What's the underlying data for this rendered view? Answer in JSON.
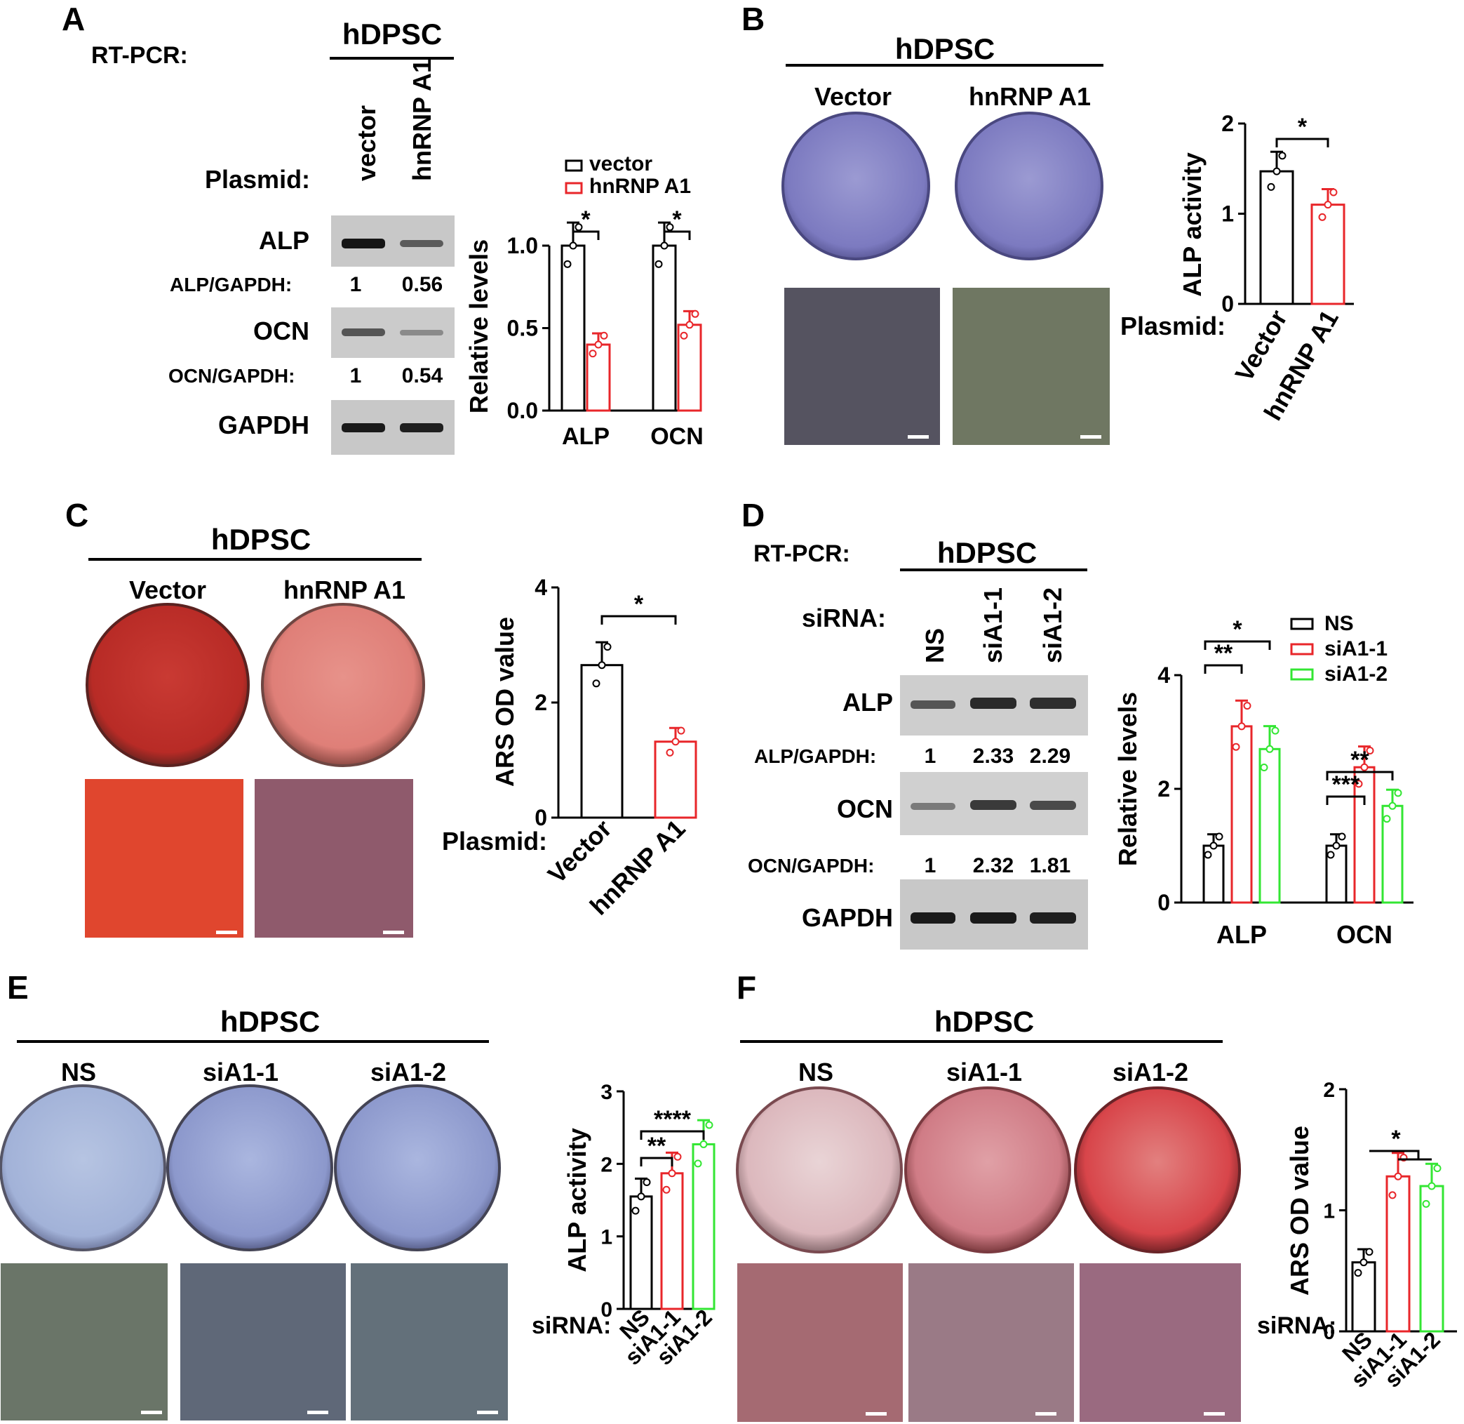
{
  "panels": {
    "A": {
      "letter": "A",
      "method": "RT-PCR:",
      "cell": "hDPSC",
      "plasmid_label": "Plasmid:",
      "lanes": [
        "vector",
        "hnRNP A1"
      ],
      "bands": [
        {
          "name": "ALP",
          "ratio_label": "ALP/GAPDH:",
          "ratios": [
            "1",
            "0.56"
          ]
        },
        {
          "name": "OCN",
          "ratio_label": "OCN/GAPDH:",
          "ratios": [
            "1",
            "0.54"
          ]
        },
        {
          "name": "GAPDH"
        }
      ]
    },
    "B": {
      "letter": "B",
      "cell": "hDPSC",
      "groups": [
        "Vector",
        "hnRNP A1"
      ],
      "plasmid_label": "Plasmid:"
    },
    "C": {
      "letter": "C",
      "cell": "hDPSC",
      "groups": [
        "Vector",
        "hnRNP A1"
      ],
      "plasmid_label": "Plasmid:"
    },
    "D": {
      "letter": "D",
      "method": "RT-PCR:",
      "cell": "hDPSC",
      "sirna_label": "siRNA:",
      "lanes": [
        "NS",
        "siA1-1",
        "siA1-2"
      ],
      "bands": [
        {
          "name": "ALP",
          "ratio_label": "ALP/GAPDH:",
          "ratios": [
            "1",
            "2.33",
            "2.29"
          ]
        },
        {
          "name": "OCN",
          "ratio_label": "OCN/GAPDH:",
          "ratios": [
            "1",
            "2.32",
            "1.81"
          ]
        },
        {
          "name": "GAPDH"
        }
      ]
    },
    "E": {
      "letter": "E",
      "cell": "hDPSC",
      "groups": [
        "NS",
        "siA1-1",
        "siA1-2"
      ],
      "sirna_label": "siRNA:"
    },
    "F": {
      "letter": "F",
      "cell": "hDPSC",
      "groups": [
        "NS",
        "siA1-1",
        "siA1-2"
      ],
      "sirna_label": "siRNA:"
    }
  },
  "colors": {
    "black": "#000000",
    "red": "#e8262a",
    "green": "#33e633",
    "alp_blue": "#8a88c8",
    "ars_red": "#c0302c"
  },
  "chart_data": [
    {
      "id": "A",
      "type": "bar",
      "ylabel": "Relative levels",
      "categories": [
        "ALP",
        "OCN"
      ],
      "ylim": [
        0,
        1.0
      ],
      "yticks": [
        "0.0",
        "0.5",
        "1.0"
      ],
      "series": [
        {
          "name": "vector",
          "values": [
            1.0,
            1.0
          ]
        },
        {
          "name": "hnRNP  A1",
          "values": [
            0.4,
            0.52
          ]
        }
      ],
      "significance": [
        "*",
        "*"
      ]
    },
    {
      "id": "B",
      "type": "bar",
      "ylabel": "ALP activity",
      "categories": [
        "Vector",
        "hnRNP A1"
      ],
      "values": [
        1.47,
        1.1
      ],
      "ylim": [
        0,
        2
      ],
      "yticks": [
        "0",
        "1",
        "2"
      ],
      "significance": [
        "*"
      ]
    },
    {
      "id": "C",
      "type": "bar",
      "ylabel": "ARS OD value",
      "categories": [
        "Vector",
        "hnRNP A1"
      ],
      "values": [
        2.65,
        1.32
      ],
      "ylim": [
        0,
        4
      ],
      "yticks": [
        "0",
        "2",
        "4"
      ],
      "significance": [
        "*"
      ]
    },
    {
      "id": "D",
      "type": "bar",
      "ylabel": "Relative levels",
      "categories": [
        "ALP",
        "OCN"
      ],
      "ylim": [
        0,
        4
      ],
      "yticks": [
        "0",
        "2",
        "4"
      ],
      "series": [
        {
          "name": "NS",
          "values": [
            1.0,
            1.0
          ]
        },
        {
          "name": "siA1-1",
          "values": [
            3.1,
            2.38
          ]
        },
        {
          "name": "siA1-2",
          "values": [
            2.7,
            1.7
          ]
        }
      ],
      "significance": [
        "**",
        "*",
        "***",
        "**"
      ]
    },
    {
      "id": "E",
      "type": "bar",
      "ylabel": "ALP activity",
      "categories": [
        "NS",
        "siA1-1",
        "siA1-2"
      ],
      "values": [
        1.55,
        1.87,
        2.27
      ],
      "ylim": [
        0,
        3
      ],
      "yticks": [
        "0",
        "1",
        "2",
        "3"
      ],
      "significance": [
        "**",
        "****"
      ]
    },
    {
      "id": "F",
      "type": "bar",
      "ylabel": "ARS OD value",
      "categories": [
        "NS",
        "siA1-1",
        "siA1-2"
      ],
      "values": [
        0.57,
        1.28,
        1.2
      ],
      "ylim": [
        0,
        2
      ],
      "yticks": [
        "0",
        "1",
        "2"
      ],
      "significance": [
        "*"
      ]
    }
  ]
}
